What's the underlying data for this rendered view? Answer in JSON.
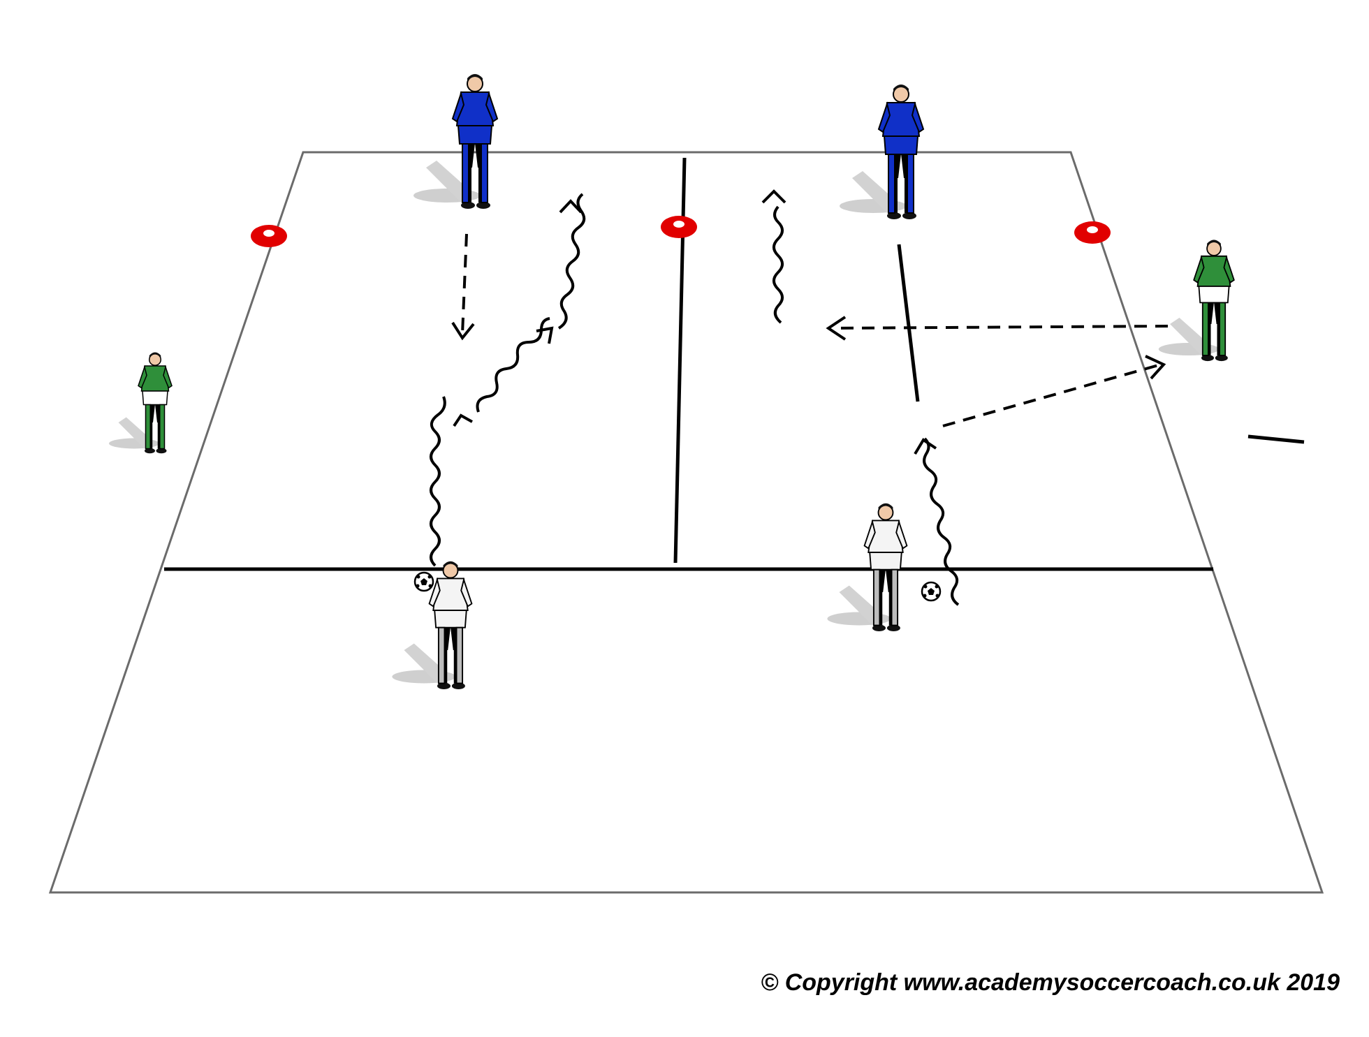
{
  "diagram": {
    "copyright": "© Copyright www.academysoccercoach.co.uk 2019",
    "colors": {
      "pitch_outline": "#6b6b6b",
      "line": "#000000",
      "cone": "#e10000",
      "blue_team": "#1030c8",
      "green_team": "#2f8f3a",
      "white_team": "#f4f4f4",
      "shadow": "#c8c8c8"
    },
    "players": [
      {
        "id": "blue-1",
        "team": "blue"
      },
      {
        "id": "blue-2",
        "team": "blue"
      },
      {
        "id": "green-left",
        "team": "green"
      },
      {
        "id": "green-right",
        "team": "green"
      },
      {
        "id": "white-1",
        "team": "white",
        "has_ball": true
      },
      {
        "id": "white-2",
        "team": "white",
        "has_ball": true
      }
    ],
    "cones": 3,
    "legend_icons": [
      "dribble-arrow",
      "pass-arrow",
      "run-arrow",
      "cone-marker",
      "soccer-ball"
    ]
  }
}
